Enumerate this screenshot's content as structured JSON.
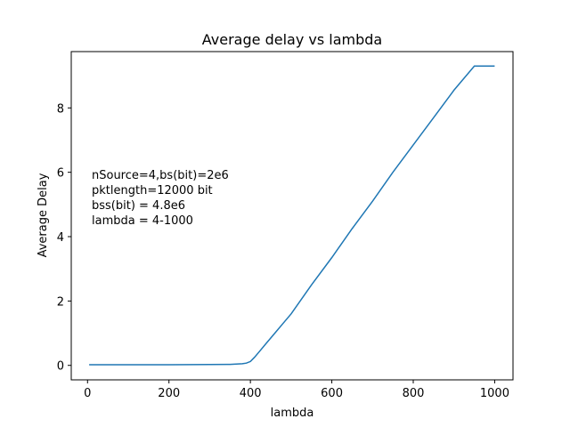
{
  "chart_data": {
    "type": "line",
    "title": "Average delay vs lambda",
    "xlabel": "lambda",
    "ylabel": "Average Delay",
    "xlim": [
      -40,
      1045
    ],
    "ylim": [
      -0.45,
      9.75
    ],
    "xticks": [
      0,
      200,
      400,
      600,
      800,
      1000
    ],
    "yticks": [
      0,
      2,
      4,
      6,
      8
    ],
    "grid": false,
    "line_color": "#1f77b4",
    "annotation": [
      "nSource=4,bs(bit)=2e6",
      " pktlength=12000 bit",
      " bss(bit) = 4.8e6",
      "lambda = 4-1000"
    ],
    "series": [
      {
        "x": [
          4,
          100,
          200,
          300,
          350,
          380,
          390,
          400,
          410,
          420,
          440,
          460,
          480,
          500,
          550,
          600,
          650,
          700,
          750,
          800,
          850,
          900,
          950,
          1000
        ],
        "y": [
          0.02,
          0.02,
          0.02,
          0.025,
          0.03,
          0.05,
          0.07,
          0.12,
          0.25,
          0.4,
          0.7,
          1.0,
          1.3,
          1.6,
          2.5,
          3.35,
          4.25,
          5.1,
          6.0,
          6.85,
          7.7,
          8.55,
          9.3,
          9.3
        ]
      }
    ]
  }
}
